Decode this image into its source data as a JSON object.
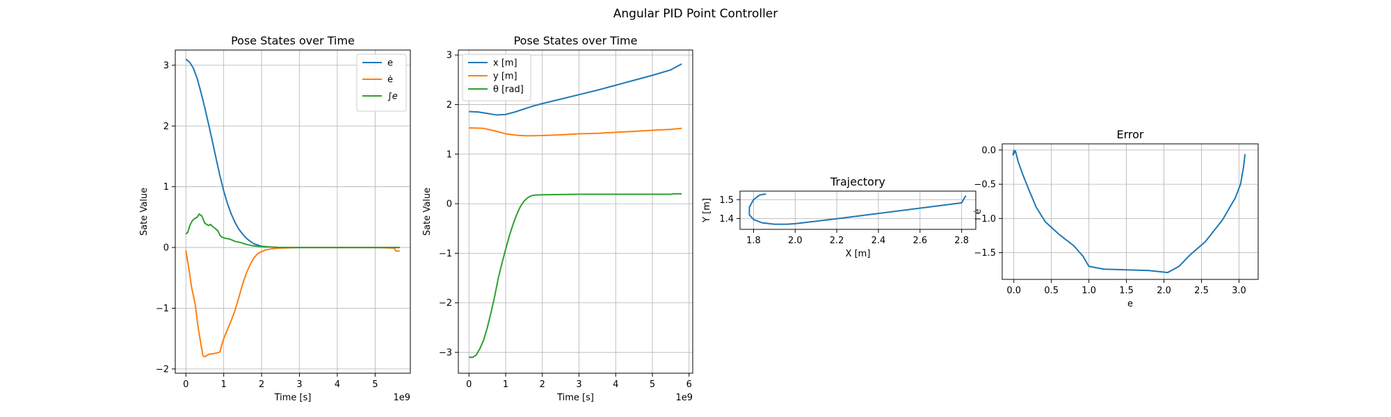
{
  "figure": {
    "suptitle": "Angular PID Point Controller"
  },
  "chart_data": [
    {
      "type": "line",
      "title": "Pose States over Time",
      "xlabel": "Time [s]",
      "ylabel": "Sate Value",
      "x_offset_text": "1e9",
      "xlim": [
        -0.28,
        5.93
      ],
      "ylim": [
        -2.07,
        3.25
      ],
      "xticks": [
        0,
        1,
        2,
        3,
        4,
        5
      ],
      "xtick_labels": [
        "0",
        "1",
        "2",
        "3",
        "4",
        "5"
      ],
      "yticks": [
        -2,
        -1,
        0,
        1,
        2,
        3
      ],
      "ytick_labels": [
        "−2",
        "−1",
        "0",
        "1",
        "2",
        "3"
      ],
      "grid": true,
      "legend": "upper-right",
      "series": [
        {
          "name": "e",
          "color": "#1f77b4",
          "points": [
            [
              0,
              3.1
            ],
            [
              0.1,
              3.05
            ],
            [
              0.2,
              2.95
            ],
            [
              0.3,
              2.78
            ],
            [
              0.4,
              2.55
            ],
            [
              0.5,
              2.3
            ],
            [
              0.6,
              2.03
            ],
            [
              0.7,
              1.75
            ],
            [
              0.8,
              1.46
            ],
            [
              0.9,
              1.18
            ],
            [
              1.0,
              0.93
            ],
            [
              1.1,
              0.72
            ],
            [
              1.2,
              0.55
            ],
            [
              1.3,
              0.41
            ],
            [
              1.4,
              0.3
            ],
            [
              1.5,
              0.22
            ],
            [
              1.6,
              0.15
            ],
            [
              1.7,
              0.1
            ],
            [
              1.8,
              0.06
            ],
            [
              1.9,
              0.04
            ],
            [
              2.0,
              0.02
            ],
            [
              2.2,
              0.01
            ],
            [
              2.5,
              0.0
            ],
            [
              3.0,
              0.0
            ],
            [
              4.0,
              0.0
            ],
            [
              5.0,
              0.0
            ],
            [
              5.5,
              0.0
            ],
            [
              5.65,
              0.0
            ]
          ]
        },
        {
          "name": "ė",
          "color": "#ff7f0e",
          "points": [
            [
              0,
              -0.05
            ],
            [
              0.08,
              -0.35
            ],
            [
              0.15,
              -0.65
            ],
            [
              0.25,
              -0.95
            ],
            [
              0.32,
              -1.3
            ],
            [
              0.4,
              -1.6
            ],
            [
              0.45,
              -1.78
            ],
            [
              0.5,
              -1.8
            ],
            [
              0.6,
              -1.76
            ],
            [
              0.7,
              -1.75
            ],
            [
              0.8,
              -1.74
            ],
            [
              0.9,
              -1.72
            ],
            [
              0.95,
              -1.6
            ],
            [
              1.0,
              -1.5
            ],
            [
              1.1,
              -1.35
            ],
            [
              1.2,
              -1.2
            ],
            [
              1.3,
              -1.03
            ],
            [
              1.4,
              -0.82
            ],
            [
              1.5,
              -0.6
            ],
            [
              1.6,
              -0.42
            ],
            [
              1.7,
              -0.28
            ],
            [
              1.8,
              -0.17
            ],
            [
              1.9,
              -0.1
            ],
            [
              2.0,
              -0.07
            ],
            [
              2.1,
              -0.04
            ],
            [
              2.3,
              -0.02
            ],
            [
              2.5,
              -0.01
            ],
            [
              3.0,
              0.0
            ],
            [
              4.0,
              0.0
            ],
            [
              5.0,
              0.0
            ],
            [
              5.5,
              -0.01
            ],
            [
              5.55,
              -0.06
            ],
            [
              5.65,
              -0.06
            ]
          ]
        },
        {
          "name": "∫e",
          "color": "#2ca02c",
          "points": [
            [
              0,
              0.22
            ],
            [
              0.05,
              0.25
            ],
            [
              0.1,
              0.35
            ],
            [
              0.15,
              0.42
            ],
            [
              0.2,
              0.46
            ],
            [
              0.3,
              0.5
            ],
            [
              0.35,
              0.55
            ],
            [
              0.42,
              0.52
            ],
            [
              0.5,
              0.4
            ],
            [
              0.6,
              0.36
            ],
            [
              0.65,
              0.38
            ],
            [
              0.7,
              0.35
            ],
            [
              0.8,
              0.3
            ],
            [
              0.85,
              0.27
            ],
            [
              0.9,
              0.2
            ],
            [
              0.95,
              0.17
            ],
            [
              1.05,
              0.15
            ],
            [
              1.15,
              0.14
            ],
            [
              1.3,
              0.1
            ],
            [
              1.45,
              0.08
            ],
            [
              1.6,
              0.05
            ],
            [
              1.75,
              0.03
            ],
            [
              1.9,
              0.02
            ],
            [
              2.1,
              0.01
            ],
            [
              2.5,
              0.0
            ],
            [
              3.0,
              0.0
            ],
            [
              4.0,
              0.0
            ],
            [
              5.0,
              0.0
            ],
            [
              5.65,
              0.0
            ]
          ]
        }
      ]
    },
    {
      "type": "line",
      "title": "Pose States over Time",
      "xlabel": "Time [s]",
      "ylabel": "Sate Value",
      "x_offset_text": "1e9",
      "xlim": [
        -0.29,
        6.1
      ],
      "ylim": [
        -3.42,
        3.1
      ],
      "xticks": [
        0,
        1,
        2,
        3,
        4,
        5,
        6
      ],
      "xtick_labels": [
        "0",
        "1",
        "2",
        "3",
        "4",
        "5",
        "6"
      ],
      "yticks": [
        -3,
        -2,
        -1,
        0,
        1,
        2,
        3
      ],
      "ytick_labels": [
        "−3",
        "−2",
        "−1",
        "0",
        "1",
        "2",
        "3"
      ],
      "grid": true,
      "legend": "upper-left",
      "series": [
        {
          "name": "x [m]",
          "color": "#1f77b4",
          "points": [
            [
              0,
              1.86
            ],
            [
              0.25,
              1.85
            ],
            [
              0.5,
              1.82
            ],
            [
              0.75,
              1.79
            ],
            [
              1.0,
              1.8
            ],
            [
              1.25,
              1.85
            ],
            [
              1.5,
              1.91
            ],
            [
              1.75,
              1.97
            ],
            [
              2.0,
              2.02
            ],
            [
              2.5,
              2.11
            ],
            [
              3.0,
              2.2
            ],
            [
              3.5,
              2.29
            ],
            [
              4.0,
              2.39
            ],
            [
              4.5,
              2.49
            ],
            [
              5.0,
              2.59
            ],
            [
              5.5,
              2.7
            ],
            [
              5.8,
              2.82
            ]
          ]
        },
        {
          "name": "y [m]",
          "color": "#ff7f0e",
          "points": [
            [
              0,
              1.53
            ],
            [
              0.4,
              1.52
            ],
            [
              0.7,
              1.47
            ],
            [
              1.0,
              1.41
            ],
            [
              1.3,
              1.38
            ],
            [
              1.6,
              1.37
            ],
            [
              2.0,
              1.375
            ],
            [
              2.5,
              1.39
            ],
            [
              3.0,
              1.41
            ],
            [
              3.5,
              1.42
            ],
            [
              4.0,
              1.44
            ],
            [
              4.5,
              1.46
            ],
            [
              5.0,
              1.48
            ],
            [
              5.5,
              1.5
            ],
            [
              5.8,
              1.52
            ]
          ]
        },
        {
          "name": "θ [rad]",
          "color": "#2ca02c",
          "points": [
            [
              0,
              -3.1
            ],
            [
              0.1,
              -3.1
            ],
            [
              0.2,
              -3.05
            ],
            [
              0.3,
              -2.92
            ],
            [
              0.4,
              -2.75
            ],
            [
              0.5,
              -2.5
            ],
            [
              0.6,
              -2.2
            ],
            [
              0.7,
              -1.87
            ],
            [
              0.8,
              -1.5
            ],
            [
              0.9,
              -1.2
            ],
            [
              1.0,
              -0.92
            ],
            [
              1.1,
              -0.65
            ],
            [
              1.2,
              -0.42
            ],
            [
              1.3,
              -0.22
            ],
            [
              1.4,
              -0.06
            ],
            [
              1.5,
              0.05
            ],
            [
              1.6,
              0.12
            ],
            [
              1.7,
              0.16
            ],
            [
              1.8,
              0.175
            ],
            [
              2.0,
              0.18
            ],
            [
              2.5,
              0.185
            ],
            [
              3.0,
              0.19
            ],
            [
              4.0,
              0.19
            ],
            [
              5.0,
              0.19
            ],
            [
              5.5,
              0.19
            ],
            [
              5.6,
              0.2
            ],
            [
              5.8,
              0.2
            ]
          ]
        }
      ]
    },
    {
      "type": "line",
      "title": "Trajectory",
      "xlabel": "X [m]",
      "ylabel": "Y [m]",
      "xlim": [
        1.735,
        2.868
      ],
      "ylim": [
        1.343,
        1.545
      ],
      "xticks": [
        1.8,
        2.0,
        2.2,
        2.4,
        2.6,
        2.8
      ],
      "xtick_labels": [
        "1.8",
        "2.0",
        "2.2",
        "2.4",
        "2.6",
        "2.8"
      ],
      "yticks": [
        1.4,
        1.5
      ],
      "ytick_labels": [
        "1.4",
        "1.5"
      ],
      "grid": true,
      "series": [
        {
          "color": "#1f77b4",
          "points": [
            [
              1.86,
              1.53
            ],
            [
              1.83,
              1.525
            ],
            [
              1.8,
              1.5
            ],
            [
              1.78,
              1.46
            ],
            [
              1.78,
              1.42
            ],
            [
              1.8,
              1.395
            ],
            [
              1.84,
              1.378
            ],
            [
              1.9,
              1.37
            ],
            [
              1.96,
              1.37
            ],
            [
              2.0,
              1.373
            ],
            [
              2.2,
              1.399
            ],
            [
              2.4,
              1.427
            ],
            [
              2.6,
              1.455
            ],
            [
              2.8,
              1.483
            ],
            [
              2.82,
              1.521
            ]
          ]
        }
      ]
    },
    {
      "type": "line",
      "title": "Error",
      "xlabel": "e",
      "ylabel": "ė",
      "xlim": [
        -0.155,
        3.255
      ],
      "ylim": [
        -1.89,
        0.09
      ],
      "xticks": [
        0,
        0.5,
        1,
        1.5,
        2,
        2.5,
        3
      ],
      "xtick_labels": [
        "0.0",
        "0.5",
        "1.0",
        "1.5",
        "2.0",
        "2.5",
        "3.0"
      ],
      "yticks": [
        0,
        -0.5,
        -1,
        -1.5
      ],
      "ytick_labels": [
        "0.0",
        "−0.5",
        "−1.0",
        "−1.5"
      ],
      "grid": true,
      "series": [
        {
          "color": "#1f77b4",
          "points": [
            [
              0.0,
              0.0
            ],
            [
              -0.01,
              -0.07
            ],
            [
              0.02,
              -0.01
            ],
            [
              0.06,
              -0.18
            ],
            [
              0.12,
              -0.36
            ],
            [
              0.2,
              -0.58
            ],
            [
              0.3,
              -0.84
            ],
            [
              0.42,
              -1.05
            ],
            [
              0.6,
              -1.23
            ],
            [
              0.8,
              -1.4
            ],
            [
              0.92,
              -1.55
            ],
            [
              1.0,
              -1.7
            ],
            [
              1.2,
              -1.74
            ],
            [
              1.5,
              -1.75
            ],
            [
              1.8,
              -1.76
            ],
            [
              2.05,
              -1.79
            ],
            [
              2.2,
              -1.7
            ],
            [
              2.35,
              -1.53
            ],
            [
              2.55,
              -1.34
            ],
            [
              2.78,
              -1.02
            ],
            [
              2.95,
              -0.7
            ],
            [
              3.02,
              -0.5
            ],
            [
              3.06,
              -0.25
            ],
            [
              3.08,
              -0.06
            ]
          ]
        }
      ]
    }
  ]
}
